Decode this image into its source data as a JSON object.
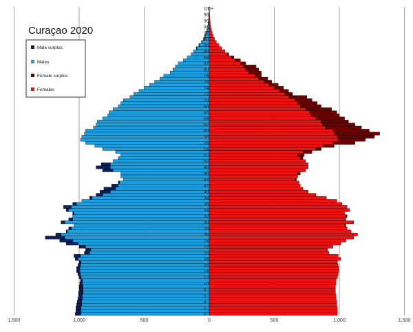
{
  "colors": {
    "males": "#1a9fe0",
    "male_surplus": "#0b1f5a",
    "females": "#ee1111",
    "female_surplus": "#6b0000",
    "gridline": "#8c8c8c"
  },
  "chart_data": {
    "type": "bar",
    "title": "Curaçao 2020",
    "orientation": "horizontal population pyramid",
    "xlim": [
      -1500,
      1500
    ],
    "x_tick_labels": [
      "1,500",
      "1,000",
      "500",
      "0",
      "500",
      "1,000",
      "1,500"
    ],
    "x_tick_values": [
      -1500,
      -1000,
      -500,
      0,
      500,
      1000,
      1500
    ],
    "grid": true,
    "legend_position": "top-left",
    "legend": [
      "Male surplus",
      "Males",
      "Female surplus",
      "Females"
    ],
    "age_labels": [
      "0",
      "2",
      "4",
      "6",
      "8",
      "10",
      "12",
      "14",
      "16",
      "18",
      "20",
      "22",
      "24",
      "26",
      "28",
      "30",
      "32",
      "34",
      "36",
      "38",
      "40",
      "42",
      "44",
      "46",
      "48",
      "50",
      "52",
      "54",
      "56",
      "58",
      "60",
      "62",
      "64",
      "66",
      "68",
      "70",
      "72",
      "74",
      "76",
      "78",
      "80",
      "82",
      "84",
      "86",
      "88",
      "90",
      "92",
      "94",
      "96",
      "98",
      "100+"
    ],
    "ages": [
      0,
      1,
      2,
      3,
      4,
      5,
      6,
      7,
      8,
      9,
      10,
      11,
      12,
      13,
      14,
      15,
      16,
      17,
      18,
      19,
      20,
      21,
      22,
      23,
      24,
      25,
      26,
      27,
      28,
      29,
      30,
      31,
      32,
      33,
      34,
      35,
      36,
      37,
      38,
      39,
      40,
      41,
      42,
      43,
      44,
      45,
      46,
      47,
      48,
      49,
      50,
      51,
      52,
      53,
      54,
      55,
      56,
      57,
      58,
      59,
      60,
      61,
      62,
      63,
      64,
      65,
      66,
      67,
      68,
      69,
      70,
      71,
      72,
      73,
      74,
      75,
      76,
      77,
      78,
      79,
      80,
      81,
      82,
      83,
      84,
      85,
      86,
      87,
      88,
      89,
      90,
      91,
      92,
      93,
      94,
      95,
      96,
      97,
      98,
      99,
      "100+"
    ],
    "series": [
      {
        "name": "Males",
        "values": [
          1030,
          1025,
          1025,
          1020,
          1015,
          1010,
          1005,
          1005,
          1000,
          1000,
          995,
          990,
          1000,
          1010,
          1020,
          1020,
          1010,
          1000,
          1030,
          1040,
          960,
          950,
          1000,
          1100,
          1150,
          1260,
          1180,
          1100,
          1080,
          1040,
          1140,
          1080,
          1050,
          1050,
          1100,
          1120,
          1050,
          980,
          920,
          870,
          840,
          810,
          750,
          700,
          660,
          680,
          680,
          820,
          870,
          830,
          740,
          700,
          680,
          720,
          820,
          880,
          950,
          990,
          980,
          960,
          950,
          890,
          870,
          860,
          820,
          780,
          770,
          740,
          700,
          680,
          660,
          610,
          580,
          540,
          500,
          460,
          420,
          380,
          350,
          300,
          280,
          260,
          240,
          200,
          170,
          140,
          120,
          100,
          80,
          60,
          45,
          35,
          25,
          18,
          12,
          9,
          6,
          4,
          3,
          2,
          3
        ]
      },
      {
        "name": "Females",
        "values": [
          985,
          985,
          985,
          980,
          980,
          975,
          975,
          970,
          970,
          970,
          975,
          975,
          985,
          990,
          995,
          995,
          990,
          985,
          1010,
          990,
          920,
          910,
          950,
          1010,
          1050,
          1110,
          1140,
          1090,
          1060,
          1050,
          1110,
          1050,
          1060,
          1040,
          1080,
          1060,
          1020,
          980,
          900,
          820,
          760,
          720,
          700,
          690,
          670,
          680,
          700,
          740,
          760,
          760,
          740,
          720,
          730,
          790,
          860,
          960,
          1120,
          1200,
          1270,
          1310,
          1230,
          1170,
          1120,
          1070,
          1040,
          1000,
          980,
          940,
          860,
          830,
          790,
          750,
          640,
          610,
          570,
          530,
          480,
          450,
          400,
          400,
          380,
          360,
          280,
          240,
          190,
          150,
          120,
          95,
          75,
          55,
          40,
          30,
          22,
          16,
          12,
          8,
          6,
          4,
          3,
          2,
          2
        ]
      }
    ]
  }
}
